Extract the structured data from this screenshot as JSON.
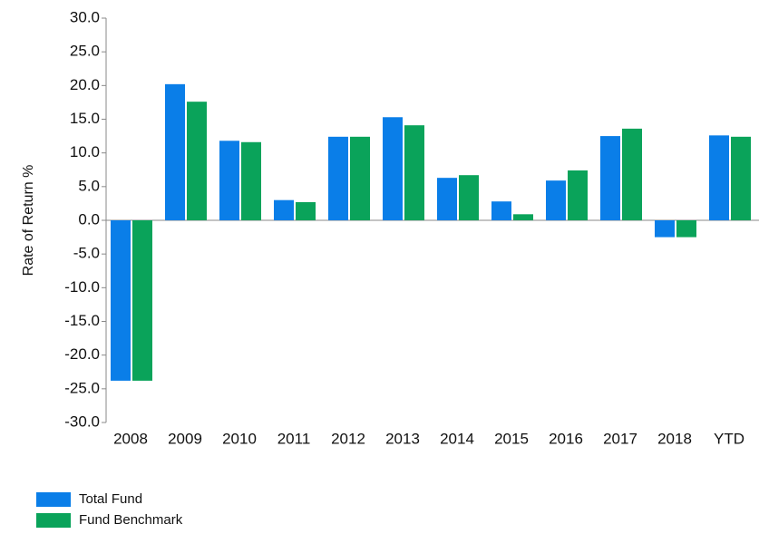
{
  "chart_data": {
    "type": "bar",
    "y_label": "Rate of Return %",
    "categories": [
      "2008",
      "2009",
      "2010",
      "2011",
      "2012",
      "2013",
      "2014",
      "2015",
      "2016",
      "2017",
      "2018",
      "YTD"
    ],
    "series": [
      {
        "name": "Total Fund",
        "color": "#0a7ee8",
        "values": [
          -23.8,
          20.2,
          11.8,
          3.0,
          12.4,
          15.3,
          6.3,
          2.8,
          5.9,
          12.5,
          -2.5,
          12.6
        ]
      },
      {
        "name": "Fund Benchmark",
        "color": "#0aa35a",
        "values": [
          -23.8,
          17.6,
          11.6,
          2.7,
          12.4,
          14.1,
          6.7,
          0.9,
          7.4,
          13.6,
          -2.5,
          12.4
        ]
      }
    ],
    "ylim": [
      -30,
      30
    ],
    "yticks": [
      {
        "value": 30,
        "label": "30.0"
      },
      {
        "value": 25,
        "label": "25.0"
      },
      {
        "value": 20,
        "label": "20.0"
      },
      {
        "value": 15,
        "label": "15.0"
      },
      {
        "value": 10,
        "label": "10.0"
      },
      {
        "value": 5,
        "label": "5.0"
      },
      {
        "value": 0,
        "label": "0.0"
      },
      {
        "value": -5,
        "label": "-5.0"
      },
      {
        "value": -10,
        "label": "-10.0"
      },
      {
        "value": -15,
        "label": "-15.0"
      },
      {
        "value": -20,
        "label": "-20.0"
      },
      {
        "value": -25,
        "label": "-25.0"
      },
      {
        "value": -30,
        "label": "-30.0"
      }
    ],
    "grid": false
  }
}
